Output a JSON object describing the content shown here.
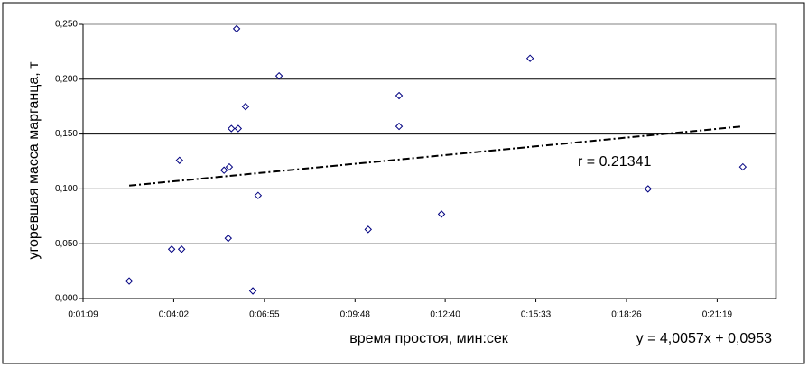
{
  "chart_data": {
    "type": "scatter",
    "x_label": "время простоя, мин:сек",
    "y_label": "угоревшая масса марганца, т",
    "annotations": [
      "r = 0.21341",
      "y = 4,0057x + 0,0953"
    ],
    "series": [
      {
        "color": "#000080",
        "x": [
          157,
          238,
          257,
          253,
          338,
          348,
          352,
          365,
          346,
          362,
          379,
          393,
          403,
          443,
          613,
          672,
          672,
          753,
          922,
          1147,
          1328
        ],
        "values": [
          0.016,
          0.045,
          0.045,
          0.126,
          0.117,
          0.12,
          0.155,
          0.155,
          0.055,
          0.246,
          0.175,
          0.007,
          0.094,
          0.203,
          0.063,
          0.185,
          0.157,
          0.077,
          0.219,
          0.1,
          0.12
        ]
      }
    ],
    "trendline": {
      "color": "#000000",
      "x": [
        157,
        1328
      ],
      "values": [
        0.103,
        0.157
      ]
    },
    "xlim": [
      69,
      1392
    ],
    "xticks": [
      {
        "value": 69,
        "label": "0:01:09"
      },
      {
        "value": 242,
        "label": "0:04:02"
      },
      {
        "value": 415,
        "label": "0:06:55"
      },
      {
        "value": 588,
        "label": "0:09:48"
      },
      {
        "value": 760,
        "label": "0:12:40"
      },
      {
        "value": 933,
        "label": "0:15:33"
      },
      {
        "value": 1106,
        "label": "0:18:26"
      },
      {
        "value": 1279,
        "label": "0:21:19"
      }
    ],
    "ylim": [
      0,
      0.25
    ],
    "yticks": [
      {
        "value": 0,
        "label": "0,000"
      },
      {
        "value": 0.05,
        "label": "0,050"
      },
      {
        "value": 0.1,
        "label": "0,100"
      },
      {
        "value": 0.15,
        "label": "0,150"
      },
      {
        "value": 0.2,
        "label": "0,200"
      },
      {
        "value": 0.25,
        "label": "0,250"
      }
    ],
    "grid": true
  }
}
